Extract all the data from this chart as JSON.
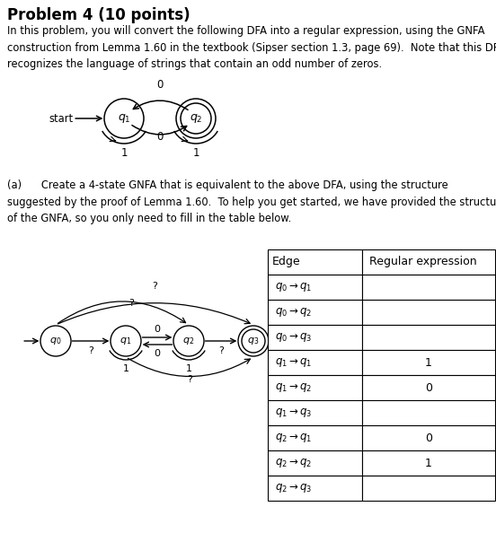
{
  "title": "Problem 4 (10 points)",
  "intro_text": "In this problem, you will convert the following DFA into a regular expression, using the GNFA\nconstruction from Lemma 1.60 in the textbook (Sipser section 1.3, page 69).  Note that this DFA\nrecognizes the language of strings that contain an odd number of zeros.",
  "part_a_text": "(a)      Create a 4-state GNFA that is equivalent to the above DFA, using the structure\nsuggested by the proof of Lemma 1.60.  To help you get started, we have provided the structure\nof the GNFA, so you only need to fill in the table below.",
  "table_edges": [
    [
      "q0",
      "q1",
      ""
    ],
    [
      "q0",
      "q2",
      ""
    ],
    [
      "q0",
      "q3",
      ""
    ],
    [
      "q1",
      "q1",
      "1"
    ],
    [
      "q1",
      "q2",
      "0"
    ],
    [
      "q1",
      "q3",
      ""
    ],
    [
      "q2",
      "q1",
      "0"
    ],
    [
      "q2",
      "q2",
      "1"
    ],
    [
      "q2",
      "q3",
      ""
    ]
  ],
  "bg_color": "#ffffff",
  "text_color": "#000000"
}
